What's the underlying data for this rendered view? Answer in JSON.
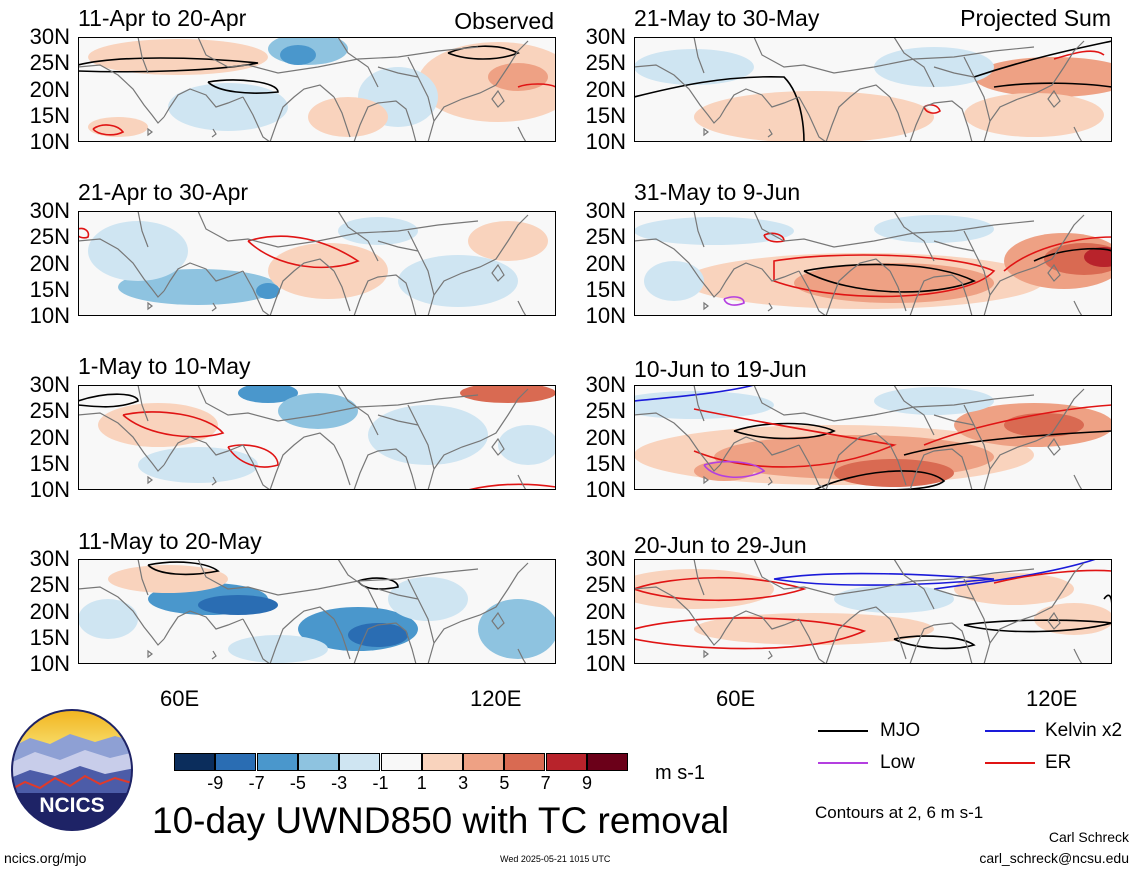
{
  "panels": [
    {
      "title": "11-Apr to 20-Apr",
      "tag": "Observed"
    },
    {
      "title": "21-Apr to 30-Apr",
      "tag": ""
    },
    {
      "title": "1-May to 10-May",
      "tag": ""
    },
    {
      "title": "11-May to 20-May",
      "tag": ""
    },
    {
      "title": "21-May to 30-May",
      "tag": "Projected Sum"
    },
    {
      "title": "31-May to 9-Jun",
      "tag": ""
    },
    {
      "title": "10-Jun to 19-Jun",
      "tag": ""
    },
    {
      "title": "20-Jun to 29-Jun",
      "tag": ""
    }
  ],
  "lat_labels": [
    "30N",
    "25N",
    "20N",
    "15N",
    "10N"
  ],
  "lon_labels": [
    "60E",
    "120E"
  ],
  "colorbar": {
    "colors": [
      "#0b2d5c",
      "#2a6db3",
      "#4a97cc",
      "#8ec3e0",
      "#cfe5f2",
      "#f8f8f8",
      "#f9d3bd",
      "#eea184",
      "#d96a52",
      "#b8232b",
      "#6b0019"
    ],
    "ticks": [
      "-9",
      "-7",
      "-5",
      "-3",
      "-1",
      "1",
      "3",
      "5",
      "7",
      "9"
    ],
    "units": "m s-1"
  },
  "title": "10-day UWND850 with TC removal",
  "legend": [
    {
      "label": "MJO",
      "color": "#000000"
    },
    {
      "label": "Kelvin x2",
      "color": "#1a1ad9"
    },
    {
      "label": "Low",
      "color": "#b43fe0"
    },
    {
      "label": "ER",
      "color": "#e01414"
    }
  ],
  "contours_note": "Contours at 2, 6 m s-1",
  "credits": {
    "author": "Carl Schreck",
    "email": "carl_schreck@ncsu.edu",
    "site": "ncics.org/mjo",
    "timestamp": "Wed 2025-05-21 1015 UTC"
  },
  "logo": {
    "text": "NCICS"
  }
}
